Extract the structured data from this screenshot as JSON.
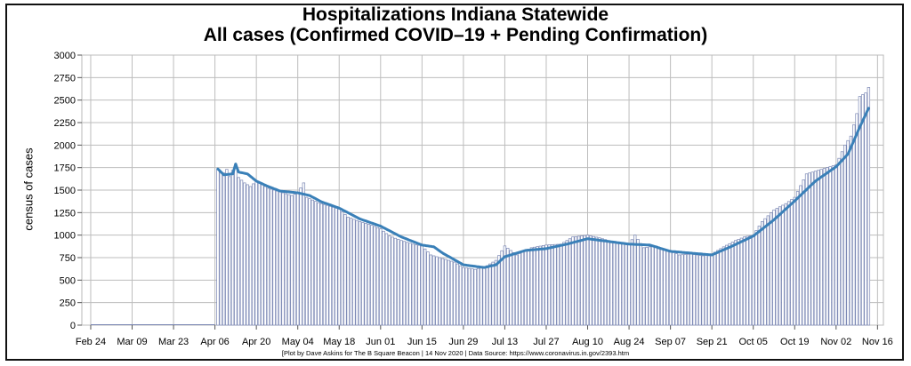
{
  "chart_data": {
    "type": "bar",
    "title": "Hospitalizations Indiana Statewide",
    "subtitle": "All cases (Confirmed COVID–19 + Pending Confirmation)",
    "ylabel": "census of cases",
    "xlabel": "",
    "ylim": [
      0,
      3000
    ],
    "yticks": [
      0,
      250,
      500,
      750,
      1000,
      1250,
      1500,
      1750,
      2000,
      2250,
      2500,
      2750,
      3000
    ],
    "x_start": "2020-02-21",
    "x_end": "2020-11-18",
    "xticks": [
      "Feb 24",
      "Mar 09",
      "Mar 23",
      "Apr 06",
      "Apr 20",
      "May 04",
      "May 18",
      "Jun 01",
      "Jun 15",
      "Jun 29",
      "Jul 13",
      "Jul 27",
      "Aug 10",
      "Aug 24",
      "Sep 07",
      "Sep 21",
      "Oct 05",
      "Oct 19",
      "Nov 02",
      "Nov 16"
    ],
    "grid": true,
    "bar_color": "#ffffff",
    "bar_edge_color": "#7a87b4",
    "line_color": "#3a80b8",
    "series": [
      {
        "type": "bar",
        "keypoints": [
          [
            "2020-04-07",
            1735
          ],
          [
            "2020-04-08",
            1700
          ],
          [
            "2020-04-09",
            1690
          ],
          [
            "2020-04-10",
            1730
          ],
          [
            "2020-04-11",
            1650
          ],
          [
            "2020-04-12",
            1720
          ],
          [
            "2020-04-13",
            1790
          ],
          [
            "2020-04-14",
            1640
          ],
          [
            "2020-04-16",
            1580
          ],
          [
            "2020-04-18",
            1540
          ],
          [
            "2020-04-20",
            1600
          ],
          [
            "2020-04-24",
            1520
          ],
          [
            "2020-04-28",
            1480
          ],
          [
            "2020-05-02",
            1440
          ],
          [
            "2020-05-04",
            1470
          ],
          [
            "2020-05-06",
            1580
          ],
          [
            "2020-05-07",
            1420
          ],
          [
            "2020-05-11",
            1360
          ],
          [
            "2020-05-15",
            1320
          ],
          [
            "2020-05-18",
            1290
          ],
          [
            "2020-05-21",
            1200
          ],
          [
            "2020-05-25",
            1150
          ],
          [
            "2020-05-29",
            1110
          ],
          [
            "2020-06-01",
            1070
          ],
          [
            "2020-06-04",
            990
          ],
          [
            "2020-06-08",
            940
          ],
          [
            "2020-06-12",
            900
          ],
          [
            "2020-06-15",
            880
          ],
          [
            "2020-06-18",
            780
          ],
          [
            "2020-06-22",
            740
          ],
          [
            "2020-06-26",
            700
          ],
          [
            "2020-06-29",
            640
          ],
          [
            "2020-07-03",
            620
          ],
          [
            "2020-07-07",
            660
          ],
          [
            "2020-07-10",
            720
          ],
          [
            "2020-07-13",
            880
          ],
          [
            "2020-07-17",
            780
          ],
          [
            "2020-07-22",
            860
          ],
          [
            "2020-07-27",
            890
          ],
          [
            "2020-08-01",
            900
          ],
          [
            "2020-08-05",
            980
          ],
          [
            "2020-08-10",
            1000
          ],
          [
            "2020-08-14",
            970
          ],
          [
            "2020-08-19",
            920
          ],
          [
            "2020-08-24",
            900
          ],
          [
            "2020-08-26",
            1000
          ],
          [
            "2020-08-29",
            860
          ],
          [
            "2020-09-02",
            880
          ],
          [
            "2020-09-07",
            820
          ],
          [
            "2020-09-10",
            780
          ],
          [
            "2020-09-14",
            790
          ],
          [
            "2020-09-18",
            770
          ],
          [
            "2020-09-21",
            790
          ],
          [
            "2020-09-25",
            870
          ],
          [
            "2020-09-29",
            940
          ],
          [
            "2020-10-02",
            980
          ],
          [
            "2020-10-05",
            1000
          ],
          [
            "2020-10-08",
            1150
          ],
          [
            "2020-10-12",
            1280
          ],
          [
            "2020-10-16",
            1350
          ],
          [
            "2020-10-19",
            1420
          ],
          [
            "2020-10-23",
            1680
          ],
          [
            "2020-10-27",
            1720
          ],
          [
            "2020-10-30",
            1750
          ],
          [
            "2020-11-02",
            1780
          ],
          [
            "2020-11-05",
            2000
          ],
          [
            "2020-11-07",
            2100
          ],
          [
            "2020-11-09",
            2350
          ],
          [
            "2020-11-10",
            2540
          ],
          [
            "2020-11-11",
            2560
          ],
          [
            "2020-11-12",
            2580
          ],
          [
            "2020-11-13",
            2640
          ]
        ]
      },
      {
        "type": "line",
        "keypoints": [
          [
            "2020-04-07",
            1735
          ],
          [
            "2020-04-09",
            1670
          ],
          [
            "2020-04-12",
            1680
          ],
          [
            "2020-04-13",
            1790
          ],
          [
            "2020-04-14",
            1700
          ],
          [
            "2020-04-17",
            1680
          ],
          [
            "2020-04-20",
            1600
          ],
          [
            "2020-04-24",
            1540
          ],
          [
            "2020-04-28",
            1490
          ],
          [
            "2020-05-04",
            1470
          ],
          [
            "2020-05-08",
            1440
          ],
          [
            "2020-05-12",
            1370
          ],
          [
            "2020-05-18",
            1300
          ],
          [
            "2020-05-25",
            1180
          ],
          [
            "2020-06-01",
            1100
          ],
          [
            "2020-06-08",
            980
          ],
          [
            "2020-06-15",
            890
          ],
          [
            "2020-06-19",
            870
          ],
          [
            "2020-06-22",
            800
          ],
          [
            "2020-06-29",
            670
          ],
          [
            "2020-07-06",
            640
          ],
          [
            "2020-07-10",
            670
          ],
          [
            "2020-07-13",
            760
          ],
          [
            "2020-07-20",
            830
          ],
          [
            "2020-07-27",
            850
          ],
          [
            "2020-08-03",
            900
          ],
          [
            "2020-08-10",
            960
          ],
          [
            "2020-08-17",
            930
          ],
          [
            "2020-08-24",
            900
          ],
          [
            "2020-08-31",
            890
          ],
          [
            "2020-09-07",
            820
          ],
          [
            "2020-09-14",
            800
          ],
          [
            "2020-09-21",
            780
          ],
          [
            "2020-09-28",
            880
          ],
          [
            "2020-10-05",
            990
          ],
          [
            "2020-10-12",
            1170
          ],
          [
            "2020-10-19",
            1380
          ],
          [
            "2020-10-26",
            1600
          ],
          [
            "2020-11-02",
            1760
          ],
          [
            "2020-11-06",
            1900
          ],
          [
            "2020-11-10",
            2200
          ],
          [
            "2020-11-13",
            2410
          ]
        ]
      }
    ]
  },
  "footer": "[Plot by Dave Askins for The B Square Beacon | 14 Nov 2020 | Data Source: https://www.coronavirus.in.gov/2393.htm"
}
